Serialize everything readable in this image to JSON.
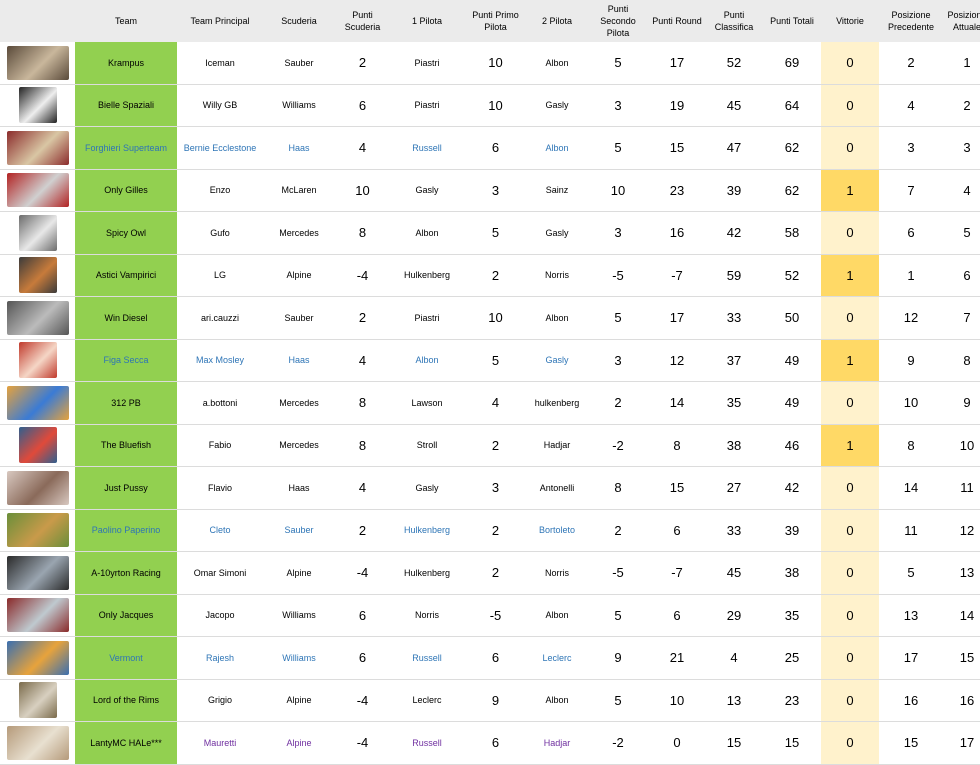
{
  "headers": {
    "image": "",
    "team": "Team",
    "principal": "Team Principal",
    "scuderia": "Scuderia",
    "punti_scuderia": "Punti Scuderia",
    "pilota1": "1 Pilota",
    "punti_primo": "Punti Primo Pilota",
    "pilota2": "2 Pilota",
    "punti_secondo": "Punti Secondo Pilota",
    "punti_round": "Punti Round",
    "punti_classifica": "Punti Classifica",
    "punti_totali": "Punti Totali",
    "vittorie": "Vittorie",
    "pos_prec": "Posizione Precedente",
    "pos_att": "Posizione Attuale"
  },
  "colors": {
    "header_bg": "#ebebeb",
    "team_bg": "#92d050",
    "vittorie_bg": "#fff2cc",
    "vittorie_win_bg": "#ffd966",
    "blue_text": "#2e75b6",
    "purple_text": "#7030a0"
  },
  "rows": [
    {
      "img": "team-photo",
      "team": "Krampus",
      "principal": "Iceman",
      "scuderia": "Sauber",
      "ps": "2",
      "p1": "Piastri",
      "pp1": "10",
      "p2": "Albon",
      "pp2": "5",
      "round": "17",
      "classifica": "52",
      "totali": "69",
      "vittorie": "0",
      "prec": "2",
      "att": "1",
      "style": "normal"
    },
    {
      "img": "team-photo",
      "team": "Bielle Spaziali",
      "principal": "Willy GB",
      "scuderia": "Williams",
      "ps": "6",
      "p1": "Piastri",
      "pp1": "10",
      "p2": "Gasly",
      "pp2": "3",
      "round": "19",
      "classifica": "45",
      "totali": "64",
      "vittorie": "0",
      "prec": "4",
      "att": "2",
      "style": "normal"
    },
    {
      "img": "team-photo",
      "team": "Forghieri Superteam",
      "principal": "Bernie Ecclestone",
      "scuderia": "Haas",
      "ps": "4",
      "p1": "Russell",
      "pp1": "6",
      "p2": "Albon",
      "pp2": "5",
      "round": "15",
      "classifica": "47",
      "totali": "62",
      "vittorie": "0",
      "prec": "3",
      "att": "3",
      "style": "blue"
    },
    {
      "img": "team-photo",
      "team": "Only Gilles",
      "principal": "Enzo",
      "scuderia": "McLaren",
      "ps": "10",
      "p1": "Gasly",
      "pp1": "3",
      "p2": "Sainz",
      "pp2": "10",
      "round": "23",
      "classifica": "39",
      "totali": "62",
      "vittorie": "1",
      "prec": "7",
      "att": "4",
      "style": "normal"
    },
    {
      "img": "team-photo",
      "team": "Spicy Owl",
      "principal": "Gufo",
      "scuderia": "Mercedes",
      "ps": "8",
      "p1": "Albon",
      "pp1": "5",
      "p2": "Gasly",
      "pp2": "3",
      "round": "16",
      "classifica": "42",
      "totali": "58",
      "vittorie": "0",
      "prec": "6",
      "att": "5",
      "style": "normal"
    },
    {
      "img": "team-photo",
      "team": "Astici Vampirici",
      "principal": "LG",
      "scuderia": "Alpine",
      "ps": "-4",
      "p1": "Hulkenberg",
      "pp1": "2",
      "p2": "Norris",
      "pp2": "-5",
      "round": "-7",
      "classifica": "59",
      "totali": "52",
      "vittorie": "1",
      "prec": "1",
      "att": "6",
      "style": "normal"
    },
    {
      "img": "team-photo",
      "team": "Win Diesel",
      "principal": "ari.cauzzi",
      "scuderia": "Sauber",
      "ps": "2",
      "p1": "Piastri",
      "pp1": "10",
      "p2": "Albon",
      "pp2": "5",
      "round": "17",
      "classifica": "33",
      "totali": "50",
      "vittorie": "0",
      "prec": "12",
      "att": "7",
      "style": "normal"
    },
    {
      "img": "team-photo",
      "team": "Figa Secca",
      "principal": "Max Mosley",
      "scuderia": "Haas",
      "ps": "4",
      "p1": "Albon",
      "pp1": "5",
      "p2": "Gasly",
      "pp2": "3",
      "round": "12",
      "classifica": "37",
      "totali": "49",
      "vittorie": "1",
      "prec": "9",
      "att": "8",
      "style": "blue"
    },
    {
      "img": "team-photo",
      "team": "312 PB",
      "principal": "a.bottoni",
      "scuderia": "Mercedes",
      "ps": "8",
      "p1": "Lawson",
      "pp1": "4",
      "p2": "hulkenberg",
      "pp2": "2",
      "round": "14",
      "classifica": "35",
      "totali": "49",
      "vittorie": "0",
      "prec": "10",
      "att": "9",
      "style": "normal"
    },
    {
      "img": "team-photo",
      "team": "The Bluefish",
      "principal": "Fabio",
      "scuderia": "Mercedes",
      "ps": "8",
      "p1": "Stroll",
      "pp1": "2",
      "p2": "Hadjar",
      "pp2": "-2",
      "round": "8",
      "classifica": "38",
      "totali": "46",
      "vittorie": "1",
      "prec": "8",
      "att": "10",
      "style": "normal"
    },
    {
      "img": "team-photo",
      "team": "Just Pussy",
      "principal": "Flavio",
      "scuderia": "Haas",
      "ps": "4",
      "p1": "Gasly",
      "pp1": "3",
      "p2": "Antonelli",
      "pp2": "8",
      "round": "15",
      "classifica": "27",
      "totali": "42",
      "vittorie": "0",
      "prec": "14",
      "att": "11",
      "style": "normal"
    },
    {
      "img": "team-photo",
      "team": "Paolino Paperino",
      "principal": "Cleto",
      "scuderia": "Sauber",
      "ps": "2",
      "p1": "Hulkenberg",
      "pp1": "2",
      "p2": "Bortoleto",
      "pp2": "2",
      "round": "6",
      "classifica": "33",
      "totali": "39",
      "vittorie": "0",
      "prec": "11",
      "att": "12",
      "style": "blue"
    },
    {
      "img": "team-photo",
      "team": "A-10yrton Racing",
      "principal": "Omar Simoni",
      "scuderia": "Alpine",
      "ps": "-4",
      "p1": "Hulkenberg",
      "pp1": "2",
      "p2": "Norris",
      "pp2": "-5",
      "round": "-7",
      "classifica": "45",
      "totali": "38",
      "vittorie": "0",
      "prec": "5",
      "att": "13",
      "style": "normal"
    },
    {
      "img": "team-photo",
      "team": "Only Jacques",
      "principal": "Jacopo",
      "scuderia": "Williams",
      "ps": "6",
      "p1": "Norris",
      "pp1": "-5",
      "p2": "Albon",
      "pp2": "5",
      "round": "6",
      "classifica": "29",
      "totali": "35",
      "vittorie": "0",
      "prec": "13",
      "att": "14",
      "style": "normal"
    },
    {
      "img": "team-photo",
      "team": "Vermont",
      "principal": "Rajesh",
      "scuderia": "Williams",
      "ps": "6",
      "p1": "Russell",
      "pp1": "6",
      "p2": "Leclerc",
      "pp2": "9",
      "round": "21",
      "classifica": "4",
      "totali": "25",
      "vittorie": "0",
      "prec": "17",
      "att": "15",
      "style": "blue"
    },
    {
      "img": "team-photo",
      "team": "Lord of the Rims",
      "principal": "Grigio",
      "scuderia": "Alpine",
      "ps": "-4",
      "p1": "Leclerc",
      "pp1": "9",
      "p2": "Albon",
      "pp2": "5",
      "round": "10",
      "classifica": "13",
      "totali": "23",
      "vittorie": "0",
      "prec": "16",
      "att": "16",
      "style": "normal"
    },
    {
      "img": "team-photo",
      "team": "LantyMC HALe***",
      "principal": "Mauretti",
      "scuderia": "Alpine",
      "ps": "-4",
      "p1": "Russell",
      "pp1": "6",
      "p2": "Hadjar",
      "pp2": "-2",
      "round": "0",
      "classifica": "15",
      "totali": "15",
      "vittorie": "0",
      "prec": "15",
      "att": "17",
      "style": "purple-partial"
    }
  ]
}
